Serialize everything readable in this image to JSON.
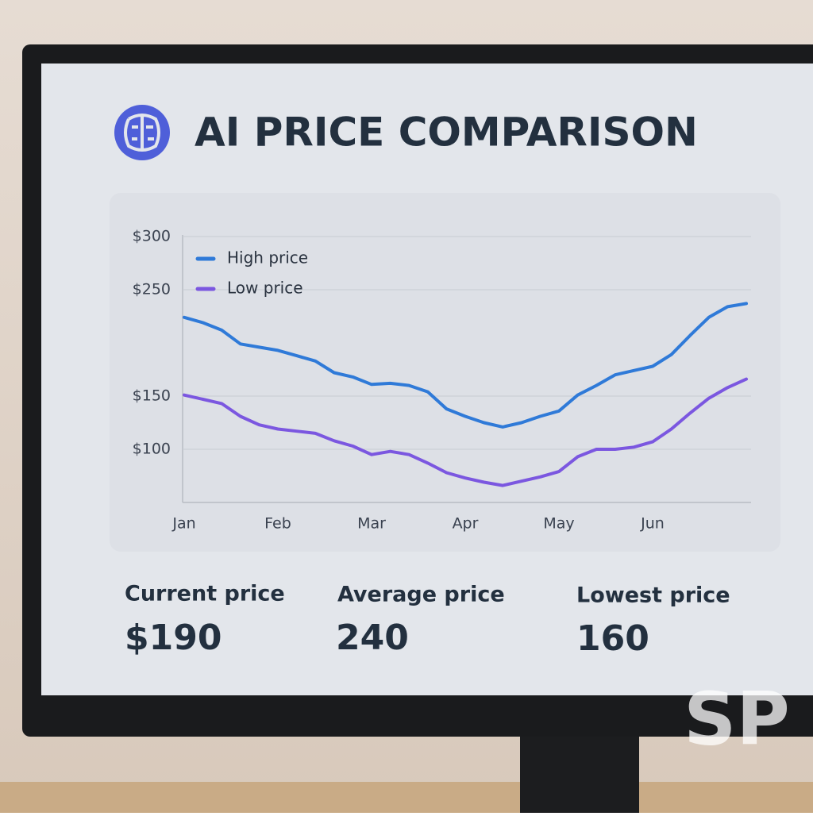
{
  "header": {
    "title": "AI PRICE COMPARISON"
  },
  "chart_data": {
    "type": "line",
    "categories": [
      "Jan",
      null,
      null,
      null,
      null,
      "Feb",
      null,
      null,
      null,
      null,
      "Mar",
      null,
      null,
      null,
      null,
      "Apr",
      null,
      null,
      null,
      null,
      "May",
      null,
      null,
      null,
      null,
      "Jun",
      null,
      null,
      null,
      null,
      null
    ],
    "series": [
      {
        "name": "High price",
        "color": "#2f7ad8",
        "values": [
          224,
          219,
          212,
          199,
          196,
          193,
          188,
          183,
          172,
          168,
          161,
          162,
          160,
          154,
          138,
          131,
          125,
          121,
          125,
          131,
          136,
          151,
          160,
          170,
          174,
          178,
          189,
          207,
          224,
          234,
          237
        ]
      },
      {
        "name": "Low price",
        "color": "#7b57e0",
        "values": [
          151,
          147,
          143,
          131,
          123,
          119,
          117,
          115,
          108,
          103,
          95,
          98,
          95,
          87,
          78,
          73,
          69,
          66,
          70,
          74,
          79,
          93,
          100,
          100,
          102,
          107,
          119,
          134,
          148,
          158,
          166
        ]
      }
    ],
    "ylim": [
      50,
      300
    ],
    "yticks": [
      {
        "value": 300,
        "label": "$300"
      },
      {
        "value": 250,
        "label": "$250"
      },
      {
        "value": 150,
        "label": "$150"
      },
      {
        "value": 100,
        "label": "$100"
      }
    ],
    "grid": true,
    "legend": "top-left"
  },
  "stats": [
    {
      "label": "Current price",
      "value": "$190"
    },
    {
      "label": "Average price",
      "value": "240"
    },
    {
      "label": "Lowest price",
      "value": "160"
    }
  ],
  "watermark": "SP"
}
